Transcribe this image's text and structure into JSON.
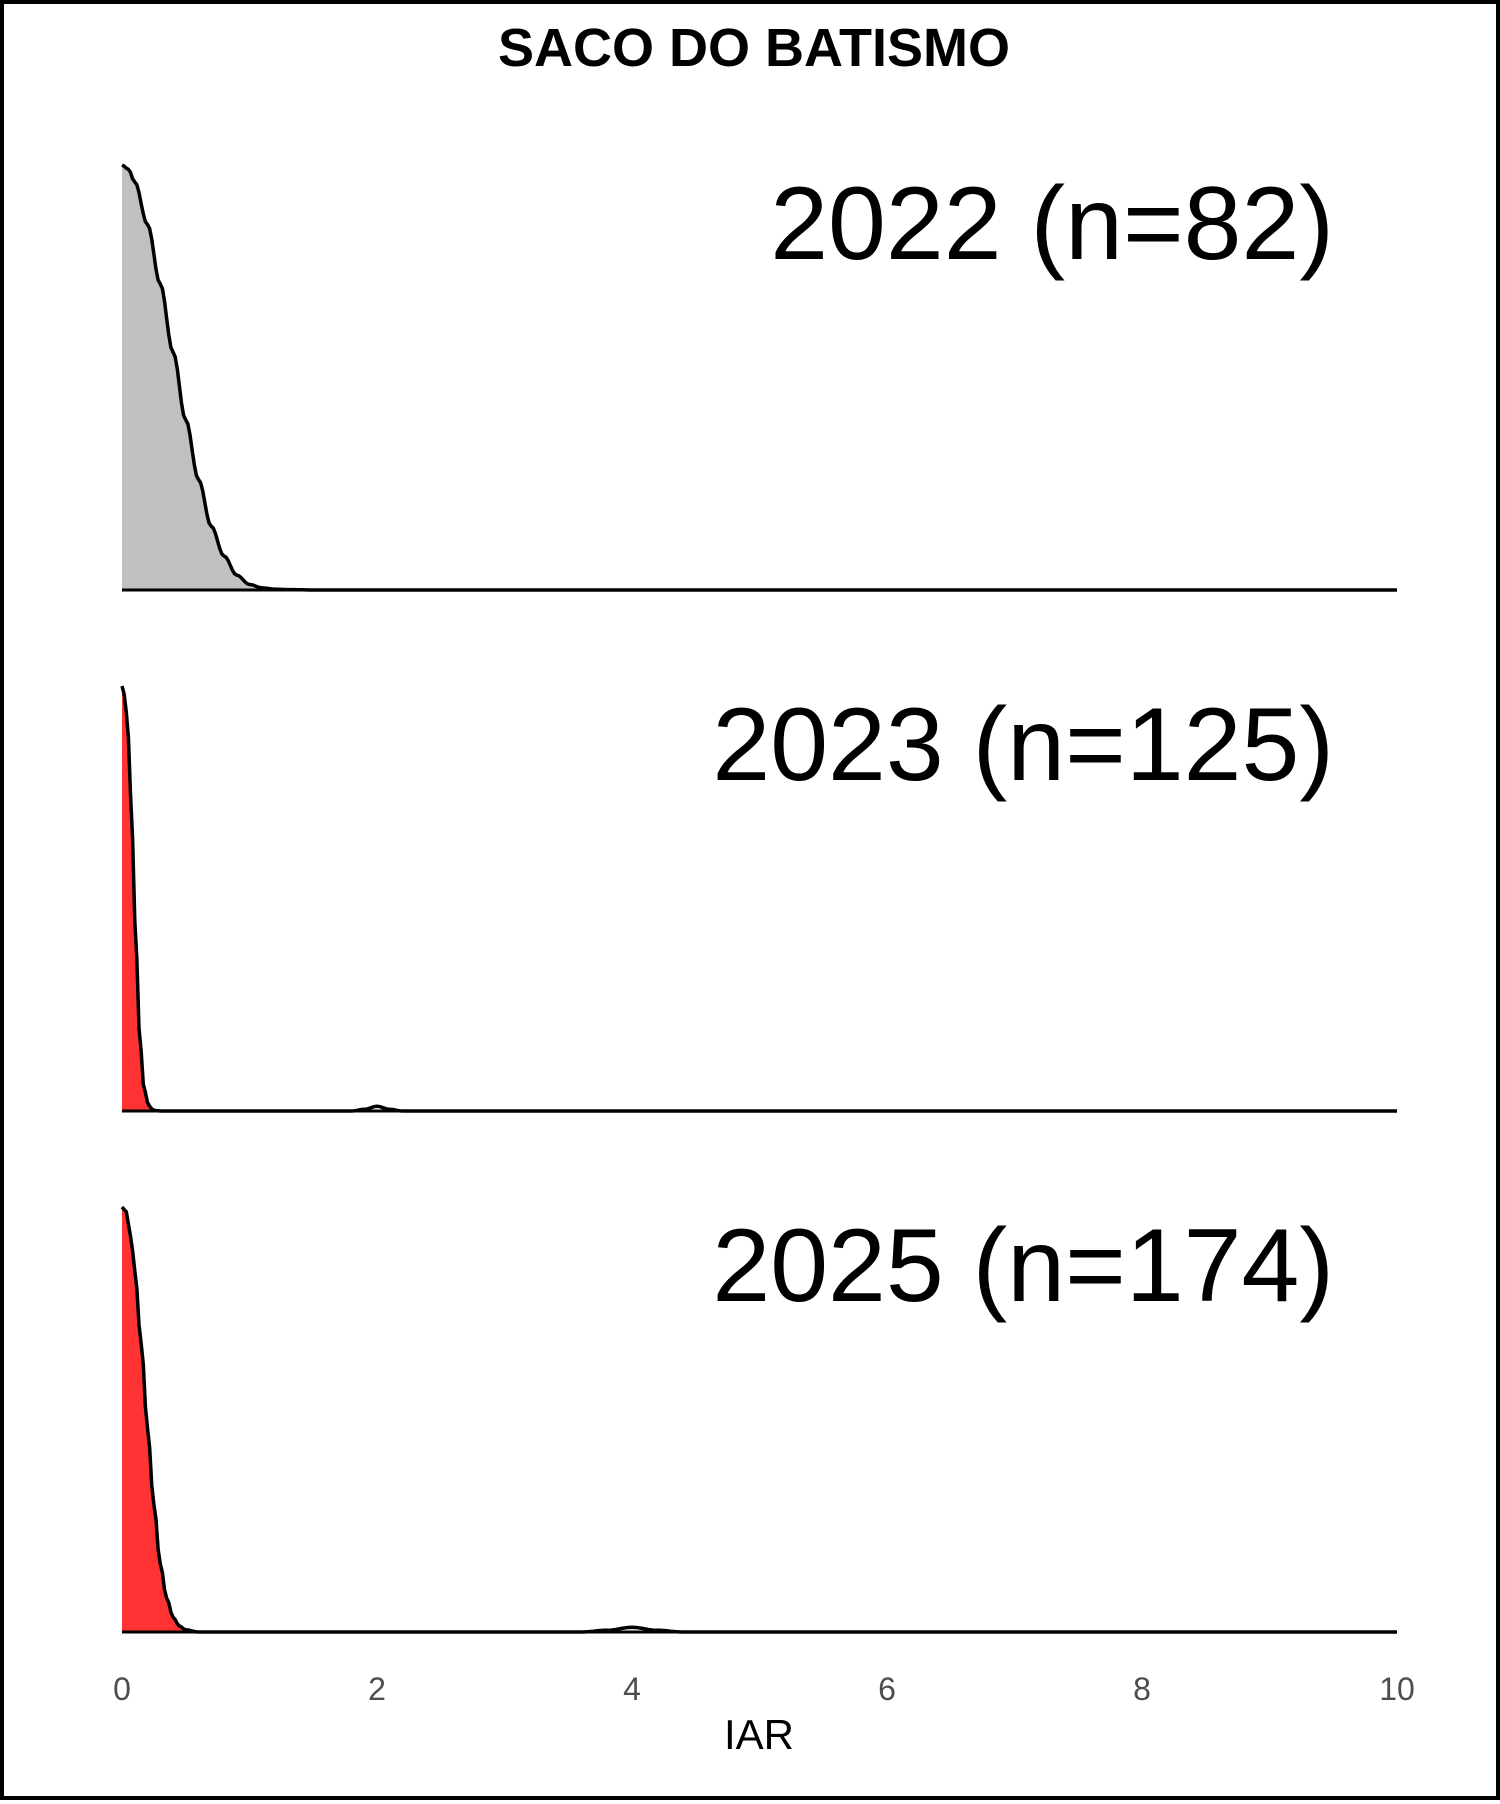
{
  "chart_data": {
    "type": "area",
    "title": "SACO DO BATISMO",
    "xlabel": "IAR",
    "ylabel": "",
    "xlim": [
      0,
      10
    ],
    "x_ticks": [
      "0",
      "2",
      "4",
      "6",
      "8",
      "10"
    ],
    "grid": false,
    "series": [
      {
        "name": "2022 (n=82)",
        "fill": "#c0c0c0",
        "fill_range": [
          0,
          1.3
        ],
        "x": [
          0,
          0.05,
          0.1,
          0.2,
          0.3,
          0.4,
          0.5,
          0.6,
          0.7,
          0.8,
          0.9,
          1.0,
          1.1,
          1.2,
          1.3,
          1.5,
          2.0,
          10
        ],
        "density": [
          1.0,
          0.99,
          0.96,
          0.86,
          0.72,
          0.56,
          0.4,
          0.26,
          0.15,
          0.08,
          0.035,
          0.013,
          0.005,
          0.002,
          0.001,
          0.0,
          0.0,
          0.0
        ]
      },
      {
        "name": "2023 (n=125)",
        "fill": "#ff3333",
        "fill_range": [
          0,
          0.25
        ],
        "x": [
          0,
          0.02,
          0.05,
          0.08,
          0.11,
          0.14,
          0.17,
          0.2,
          0.23,
          0.26,
          0.3,
          1.8,
          1.9,
          2.0,
          2.1,
          2.2,
          10
        ],
        "density": [
          1.0,
          0.98,
          0.88,
          0.65,
          0.38,
          0.17,
          0.06,
          0.02,
          0.005,
          0.001,
          0.0,
          0.0,
          0.004,
          0.011,
          0.004,
          0.0,
          0.0
        ]
      },
      {
        "name": "2025 (n=174)",
        "fill": "#ff3333",
        "fill_range": [
          0,
          0.5
        ],
        "x": [
          0,
          0.03,
          0.07,
          0.1,
          0.15,
          0.2,
          0.25,
          0.3,
          0.35,
          0.4,
          0.45,
          0.5,
          0.6,
          3.6,
          3.8,
          4.0,
          4.2,
          4.4,
          10
        ],
        "density": [
          1.0,
          0.99,
          0.93,
          0.85,
          0.68,
          0.48,
          0.3,
          0.16,
          0.08,
          0.035,
          0.014,
          0.005,
          0.0,
          0.0,
          0.004,
          0.011,
          0.004,
          0.0,
          0.0
        ]
      }
    ]
  }
}
